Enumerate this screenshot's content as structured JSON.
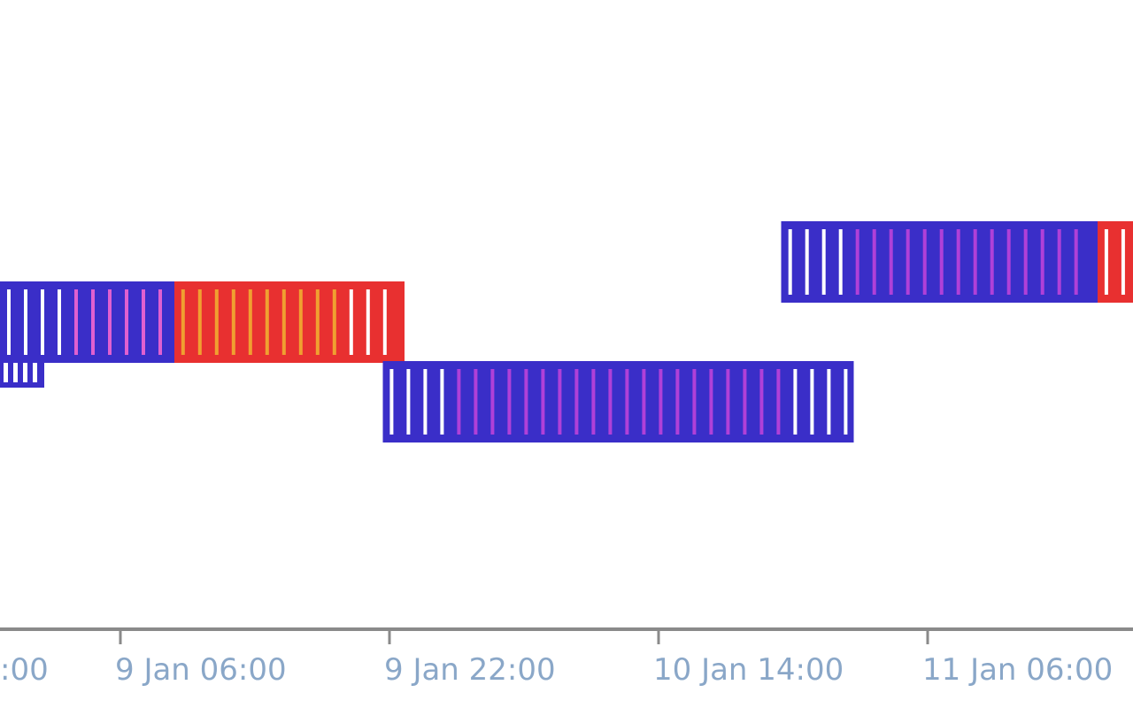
{
  "chart_data": {
    "type": "timeline",
    "title": "",
    "xlabel": "",
    "ylabel": "",
    "x_unit": "hours",
    "x_range_hours": [
      -10.5,
      103.5
    ],
    "x_ticks": [
      {
        "t": -16,
        "label": ":00",
        "visible_label": ":00"
      },
      {
        "t": 0,
        "label": "9 Jan 06:00"
      },
      {
        "t": 16,
        "label": "9 Jan 22:00"
      },
      {
        "t": 32,
        "label": "10 Jan 14:00"
      },
      {
        "t": 48,
        "label": "11 Jan 06:00"
      }
    ],
    "rows": [
      {
        "name": "",
        "lane": 0
      },
      {
        "name": "",
        "lane": 1
      },
      {
        "name": "",
        "lane": 2
      }
    ],
    "bars": [
      {
        "lane": 1,
        "start_hours": -8.0,
        "end_hours": 3.2,
        "fill": "#3a2ec8",
        "stripe": "#e060d0"
      },
      {
        "lane": 1,
        "start_hours": 3.2,
        "end_hours": 16.9,
        "fill": "#e83030",
        "stripe": "#f0a030"
      },
      {
        "lane": 2,
        "start_hours": 15.6,
        "end_hours": 43.6,
        "fill": "#3a2ec8",
        "stripe": "#b040d8"
      },
      {
        "lane": 0,
        "start_hours": 39.3,
        "end_hours": 58.1,
        "fill": "#3a2ec8",
        "stripe": "#b040d8"
      },
      {
        "lane": 0,
        "start_hours": 58.1,
        "end_hours": 70.0,
        "fill": "#e83030",
        "stripe": "#f0a030"
      }
    ],
    "colors": {
      "blue": "#3a2ec8",
      "red": "#e83030",
      "stripe_purple": "#b040d8",
      "stripe_orange": "#f0a030",
      "stripe_white": "#ffffff",
      "axis": "#8a8a8a",
      "tick_label": "#8aa7c8"
    },
    "grid": false,
    "legend": "none"
  }
}
